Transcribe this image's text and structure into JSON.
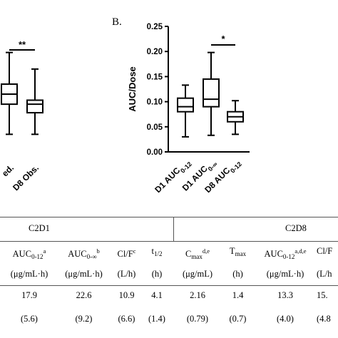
{
  "chart_data": [
    {
      "type": "box",
      "panel": "",
      "categories": [
        "ed.",
        "D8 Obs."
      ],
      "ylabel": "",
      "significance": [
        {
          "between": [
            "ed.",
            "D8 Obs."
          ],
          "label": "**"
        }
      ],
      "series": [
        {
          "category": "ed.",
          "min": 0.035,
          "q1": 0.095,
          "median": 0.115,
          "q3": 0.135,
          "max": 0.198
        },
        {
          "category": "D8 Obs.",
          "min": 0.035,
          "q1": 0.078,
          "median": 0.095,
          "q3": 0.103,
          "max": 0.165
        }
      ]
    },
    {
      "type": "box",
      "panel": "B.",
      "categories": [
        "D1 AUC0-12",
        "D1 AUC0-∞",
        "D8 AUC0-12"
      ],
      "ylabel": "AUC/Dose",
      "ylim": [
        0.0,
        0.25
      ],
      "yticks": [
        "0.00",
        "0.05",
        "0.10",
        "0.15",
        "0.20",
        "0.25"
      ],
      "significance": [
        {
          "between": [
            "D1 AUC0-∞",
            "D8 AUC0-12"
          ],
          "label": "*"
        }
      ],
      "series": [
        {
          "category": "D1 AUC0-12",
          "min": 0.03,
          "q1": 0.08,
          "median": 0.09,
          "q3": 0.107,
          "max": 0.133
        },
        {
          "category": "D1 AUC0-∞",
          "min": 0.033,
          "q1": 0.09,
          "median": 0.105,
          "q3": 0.145,
          "max": 0.198
        },
        {
          "category": "D8 AUC0-12",
          "min": 0.035,
          "q1": 0.06,
          "median": 0.07,
          "q3": 0.08,
          "max": 0.102
        }
      ]
    }
  ],
  "table": {
    "groups": [
      "C2D1",
      "C2D8"
    ],
    "headers": [
      {
        "base": "AUC",
        "sub": "0-12",
        "sup": "a"
      },
      {
        "base": "AUC",
        "sub": "0-∞",
        "sup": "b"
      },
      {
        "base": "Cl/F",
        "sub": "",
        "sup": "c"
      },
      {
        "base": "t",
        "sub": "1/2",
        "sup": ""
      },
      {
        "base": "C",
        "sub": "max",
        "sup": "d,e"
      },
      {
        "base": "T",
        "sub": "max",
        "sup": ""
      },
      {
        "base": "AUC",
        "sub": "0-12",
        "sup": "a,d,e"
      },
      {
        "base": "Cl/F",
        "sub": "",
        "sup": ""
      }
    ],
    "units": [
      "(μg/mL·h)",
      "(μg/mL·h)",
      "(L/h)",
      "(h)",
      "(μg/mL)",
      "(h)",
      "(μg/mL·h)",
      "(L/h"
    ],
    "means": [
      "17.9",
      "22.6",
      "10.9",
      "4.1",
      "2.16",
      "1.4",
      "13.3",
      "15."
    ],
    "sds": [
      "(5.6)",
      "(9.2)",
      "(6.6)",
      "(1.4)",
      "(0.79)",
      "(0.7)",
      "(4.0)",
      "(4.8"
    ]
  }
}
